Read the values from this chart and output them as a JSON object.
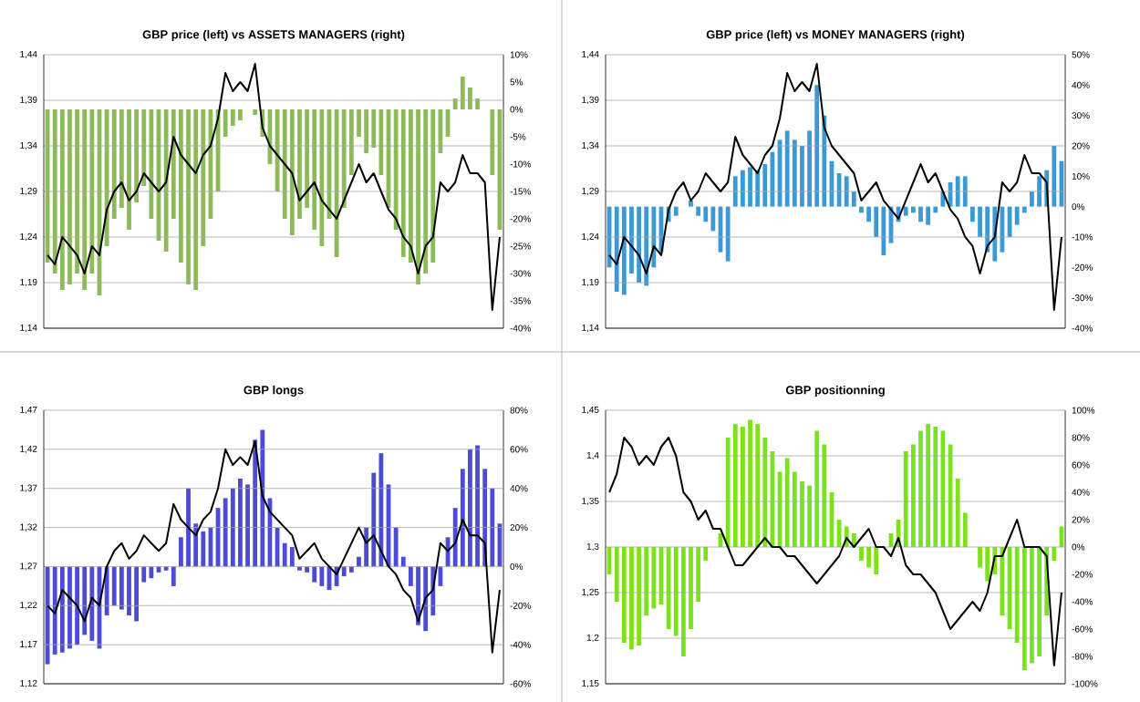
{
  "chart_data": [
    {
      "type": "bar",
      "title": "GBP price (left) vs ASSETS MANAGERS (right)",
      "grid": "y",
      "categories": [
        null,
        null,
        null,
        null,
        null,
        null,
        null,
        null,
        null,
        null,
        null,
        null,
        null,
        null,
        null,
        null,
        null,
        null,
        null,
        null,
        null,
        null,
        null,
        null,
        null,
        null,
        null,
        null,
        null,
        null,
        null,
        null,
        null,
        null,
        null,
        null,
        null,
        null,
        null,
        null,
        null,
        null,
        null,
        null,
        null,
        null,
        null,
        null,
        null,
        null,
        null,
        null,
        null,
        null,
        null,
        null,
        null,
        null,
        null,
        null,
        null,
        null
      ],
      "ylim": [
        1.14,
        1.44
      ],
      "yticks": [
        {
          "value": 1.14,
          "label": "1,14"
        },
        {
          "value": 1.19,
          "label": "1,19"
        },
        {
          "value": 1.24,
          "label": "1,24"
        },
        {
          "value": 1.29,
          "label": "1,29"
        },
        {
          "value": 1.34,
          "label": "1,34"
        },
        {
          "value": 1.39,
          "label": "1,39"
        },
        {
          "value": 1.44,
          "label": "1,44"
        }
      ],
      "y2lim": [
        -40,
        10
      ],
      "y2ticks": [
        {
          "value": -40,
          "label": "-40%"
        },
        {
          "value": -35,
          "label": "-35%"
        },
        {
          "value": -30,
          "label": "-30%"
        },
        {
          "value": -25,
          "label": "-25%"
        },
        {
          "value": -20,
          "label": "-20%"
        },
        {
          "value": -15,
          "label": "-15%"
        },
        {
          "value": -10,
          "label": "-10%"
        },
        {
          "value": -5,
          "label": "-5%"
        },
        {
          "value": 0,
          "label": "0%"
        },
        {
          "value": 5,
          "label": "5%"
        },
        {
          "value": 10,
          "label": "10%"
        }
      ],
      "series": [
        {
          "axis": "y2",
          "color": "#8dbb5a",
          "values": [
            -28,
            -30,
            -33,
            -32,
            -30,
            -33,
            -30,
            -34,
            -25,
            -20,
            -18,
            -22,
            -17,
            -14,
            -20,
            -24,
            -26,
            -20,
            -28,
            -32,
            -33,
            -25,
            -20,
            -15,
            -5,
            -3,
            -2,
            0,
            -1,
            -5,
            -10,
            -15,
            -20,
            -23,
            -20,
            -18,
            -22,
            -25,
            -20,
            -27,
            -18,
            -12,
            -5,
            -8,
            -7,
            -12,
            -18,
            -22,
            -27,
            -28,
            -32,
            -30,
            -28,
            -8,
            -5,
            2,
            6,
            4,
            2,
            0,
            -12,
            -22
          ]
        },
        {
          "type": "line",
          "color": "#000000",
          "values": [
            1.22,
            1.21,
            1.24,
            1.23,
            1.22,
            1.2,
            1.23,
            1.22,
            1.27,
            1.29,
            1.3,
            1.28,
            1.29,
            1.31,
            1.3,
            1.29,
            1.3,
            1.35,
            1.33,
            1.32,
            1.31,
            1.33,
            1.34,
            1.37,
            1.42,
            1.4,
            1.41,
            1.4,
            1.43,
            1.36,
            1.34,
            1.33,
            1.32,
            1.31,
            1.28,
            1.29,
            1.3,
            1.28,
            1.27,
            1.26,
            1.28,
            1.3,
            1.32,
            1.3,
            1.31,
            1.29,
            1.27,
            1.26,
            1.24,
            1.23,
            1.2,
            1.23,
            1.24,
            1.3,
            1.29,
            1.3,
            1.33,
            1.31,
            1.31,
            1.3,
            1.16,
            1.24
          ]
        }
      ]
    },
    {
      "type": "bar",
      "title": "GBP price (left) vs MONEY MANAGERS (right)",
      "grid": "y",
      "categories": [
        null,
        null,
        null,
        null,
        null,
        null,
        null,
        null,
        null,
        null,
        null,
        null,
        null,
        null,
        null,
        null,
        null,
        null,
        null,
        null,
        null,
        null,
        null,
        null,
        null,
        null,
        null,
        null,
        null,
        null,
        null,
        null,
        null,
        null,
        null,
        null,
        null,
        null,
        null,
        null,
        null,
        null,
        null,
        null,
        null,
        null,
        null,
        null,
        null,
        null,
        null,
        null,
        null,
        null,
        null,
        null,
        null,
        null,
        null,
        null,
        null,
        null
      ],
      "ylim": [
        1.14,
        1.44
      ],
      "yticks": [
        {
          "value": 1.14,
          "label": "1,14"
        },
        {
          "value": 1.19,
          "label": "1,19"
        },
        {
          "value": 1.24,
          "label": "1,24"
        },
        {
          "value": 1.29,
          "label": "1,29"
        },
        {
          "value": 1.34,
          "label": "1,34"
        },
        {
          "value": 1.39,
          "label": "1,39"
        },
        {
          "value": 1.44,
          "label": "1,44"
        }
      ],
      "y2lim": [
        -40,
        50
      ],
      "y2ticks": [
        {
          "value": -40,
          "label": "-40%"
        },
        {
          "value": -30,
          "label": "-30%"
        },
        {
          "value": -20,
          "label": "-20%"
        },
        {
          "value": -10,
          "label": "-10%"
        },
        {
          "value": 0,
          "label": "0%"
        },
        {
          "value": 10,
          "label": "10%"
        },
        {
          "value": 20,
          "label": "20%"
        },
        {
          "value": 30,
          "label": "30%"
        },
        {
          "value": 40,
          "label": "40%"
        },
        {
          "value": 50,
          "label": "50%"
        }
      ],
      "series": [
        {
          "axis": "y2",
          "color": "#3b9ad6",
          "values": [
            -20,
            -28,
            -29,
            -22,
            -25,
            -26,
            -20,
            -15,
            -5,
            -3,
            0,
            2,
            -3,
            -5,
            -8,
            -15,
            -18,
            10,
            12,
            13,
            12,
            14,
            18,
            22,
            25,
            22,
            20,
            25,
            40,
            30,
            15,
            11,
            10,
            5,
            -2,
            -5,
            -10,
            -16,
            -12,
            -5,
            -3,
            -2,
            -5,
            -6,
            -2,
            5,
            8,
            10,
            10,
            -5,
            -10,
            -15,
            -18,
            -15,
            -10,
            -6,
            -2,
            5,
            10,
            12,
            20,
            15
          ]
        },
        {
          "type": "line",
          "color": "#000000",
          "values": [
            1.22,
            1.21,
            1.24,
            1.23,
            1.22,
            1.2,
            1.23,
            1.22,
            1.27,
            1.29,
            1.3,
            1.28,
            1.29,
            1.31,
            1.3,
            1.29,
            1.3,
            1.35,
            1.33,
            1.32,
            1.31,
            1.33,
            1.34,
            1.37,
            1.42,
            1.4,
            1.41,
            1.4,
            1.43,
            1.36,
            1.34,
            1.33,
            1.32,
            1.31,
            1.28,
            1.29,
            1.3,
            1.28,
            1.27,
            1.26,
            1.28,
            1.3,
            1.32,
            1.3,
            1.31,
            1.29,
            1.27,
            1.26,
            1.24,
            1.23,
            1.2,
            1.23,
            1.24,
            1.3,
            1.29,
            1.3,
            1.33,
            1.31,
            1.31,
            1.3,
            1.16,
            1.24
          ]
        }
      ]
    },
    {
      "type": "bar",
      "title": "GBP longs",
      "grid": "y",
      "categories": [
        null,
        null,
        null,
        null,
        null,
        null,
        null,
        null,
        null,
        null,
        null,
        null,
        null,
        null,
        null,
        null,
        null,
        null,
        null,
        null,
        null,
        null,
        null,
        null,
        null,
        null,
        null,
        null,
        null,
        null,
        null,
        null,
        null,
        null,
        null,
        null,
        null,
        null,
        null,
        null,
        null,
        null,
        null,
        null,
        null,
        null,
        null,
        null,
        null,
        null,
        null,
        null,
        null,
        null,
        null,
        null,
        null,
        null,
        null,
        null,
        null,
        null
      ],
      "ylim": [
        1.12,
        1.47
      ],
      "yticks": [
        {
          "value": 1.12,
          "label": "1,12"
        },
        {
          "value": 1.17,
          "label": "1,17"
        },
        {
          "value": 1.22,
          "label": "1,22"
        },
        {
          "value": 1.27,
          "label": "1,27"
        },
        {
          "value": 1.32,
          "label": "1,32"
        },
        {
          "value": 1.37,
          "label": "1,37"
        },
        {
          "value": 1.42,
          "label": "1,42"
        },
        {
          "value": 1.47,
          "label": "1,47"
        }
      ],
      "y2lim": [
        -60,
        80
      ],
      "y2ticks": [
        {
          "value": -60,
          "label": "-60%"
        },
        {
          "value": -40,
          "label": "-40%"
        },
        {
          "value": -20,
          "label": "-20%"
        },
        {
          "value": 0,
          "label": "0%"
        },
        {
          "value": 20,
          "label": "20%"
        },
        {
          "value": 40,
          "label": "40%"
        },
        {
          "value": 60,
          "label": "60%"
        },
        {
          "value": 80,
          "label": "80%"
        }
      ],
      "series": [
        {
          "axis": "y2",
          "color": "#4b4bd8",
          "values": [
            -50,
            -45,
            -44,
            -42,
            -40,
            -35,
            -38,
            -42,
            -25,
            -20,
            -22,
            -25,
            -28,
            -8,
            -6,
            -3,
            -2,
            -10,
            15,
            40,
            22,
            18,
            20,
            30,
            35,
            40,
            45,
            42,
            65,
            70,
            35,
            20,
            12,
            10,
            -2,
            -3,
            -8,
            -10,
            -12,
            -10,
            -5,
            -3,
            5,
            20,
            48,
            58,
            42,
            20,
            5,
            -10,
            -30,
            -33,
            -25,
            -10,
            15,
            30,
            50,
            60,
            62,
            50,
            40,
            22
          ]
        },
        {
          "type": "line",
          "color": "#000000",
          "values": [
            1.22,
            1.21,
            1.24,
            1.23,
            1.22,
            1.2,
            1.23,
            1.22,
            1.27,
            1.29,
            1.3,
            1.28,
            1.29,
            1.31,
            1.3,
            1.29,
            1.3,
            1.35,
            1.33,
            1.32,
            1.31,
            1.33,
            1.34,
            1.37,
            1.42,
            1.4,
            1.41,
            1.4,
            1.43,
            1.36,
            1.34,
            1.33,
            1.32,
            1.31,
            1.28,
            1.29,
            1.3,
            1.28,
            1.27,
            1.26,
            1.28,
            1.3,
            1.32,
            1.3,
            1.31,
            1.29,
            1.27,
            1.26,
            1.24,
            1.23,
            1.2,
            1.23,
            1.24,
            1.3,
            1.29,
            1.3,
            1.33,
            1.31,
            1.31,
            1.3,
            1.16,
            1.24
          ]
        }
      ]
    },
    {
      "type": "bar",
      "title": "GBP positionning",
      "grid": "y",
      "categories": [
        null,
        null,
        null,
        null,
        null,
        null,
        null,
        null,
        null,
        null,
        null,
        null,
        null,
        null,
        null,
        null,
        null,
        null,
        null,
        null,
        null,
        null,
        null,
        null,
        null,
        null,
        null,
        null,
        null,
        null,
        null,
        null,
        null,
        null,
        null,
        null,
        null,
        null,
        null,
        null,
        null,
        null,
        null,
        null,
        null,
        null,
        null,
        null,
        null,
        null,
        null,
        null,
        null,
        null,
        null,
        null,
        null,
        null,
        null,
        null,
        null,
        null
      ],
      "ylim": [
        1.15,
        1.45
      ],
      "yticks": [
        {
          "value": 1.15,
          "label": "1,15"
        },
        {
          "value": 1.2,
          "label": "1,2"
        },
        {
          "value": 1.25,
          "label": "1,25"
        },
        {
          "value": 1.3,
          "label": "1,3"
        },
        {
          "value": 1.35,
          "label": "1,35"
        },
        {
          "value": 1.4,
          "label": "1,4"
        },
        {
          "value": 1.45,
          "label": "1,45"
        }
      ],
      "y2lim": [
        -100,
        100
      ],
      "y2ticks": [
        {
          "value": -100,
          "label": "-100%"
        },
        {
          "value": -80,
          "label": "-80%"
        },
        {
          "value": -60,
          "label": "-60%"
        },
        {
          "value": -40,
          "label": "-40%"
        },
        {
          "value": -20,
          "label": "-20%"
        },
        {
          "value": 0,
          "label": "0%"
        },
        {
          "value": 20,
          "label": "20%"
        },
        {
          "value": 40,
          "label": "40%"
        },
        {
          "value": 60,
          "label": "60%"
        },
        {
          "value": 80,
          "label": "80%"
        },
        {
          "value": 100,
          "label": "100%"
        }
      ],
      "series": [
        {
          "axis": "y2",
          "color": "#7be21c",
          "values": [
            -20,
            -40,
            -70,
            -75,
            -72,
            -50,
            -45,
            -42,
            -60,
            -65,
            -80,
            -60,
            -40,
            -10,
            0,
            10,
            80,
            90,
            88,
            93,
            90,
            80,
            70,
            55,
            65,
            55,
            48,
            45,
            85,
            75,
            40,
            20,
            15,
            10,
            -10,
            -15,
            -20,
            0,
            10,
            20,
            70,
            75,
            85,
            90,
            88,
            85,
            75,
            50,
            25,
            0,
            -15,
            -25,
            -20,
            -50,
            -60,
            -70,
            -90,
            -85,
            -80,
            -50,
            -10,
            15
          ]
        },
        {
          "type": "line",
          "color": "#000000",
          "values": [
            1.36,
            1.38,
            1.42,
            1.41,
            1.39,
            1.4,
            1.39,
            1.41,
            1.42,
            1.4,
            1.36,
            1.35,
            1.33,
            1.34,
            1.32,
            1.32,
            1.3,
            1.28,
            1.28,
            1.29,
            1.3,
            1.31,
            1.3,
            1.3,
            1.29,
            1.29,
            1.28,
            1.27,
            1.26,
            1.27,
            1.28,
            1.29,
            1.31,
            1.3,
            1.31,
            1.32,
            1.3,
            1.3,
            1.29,
            1.31,
            1.28,
            1.27,
            1.27,
            1.26,
            1.25,
            1.23,
            1.21,
            1.22,
            1.23,
            1.24,
            1.23,
            1.25,
            1.29,
            1.29,
            1.31,
            1.33,
            1.3,
            1.3,
            1.3,
            1.29,
            1.17,
            1.25
          ]
        }
      ]
    }
  ]
}
